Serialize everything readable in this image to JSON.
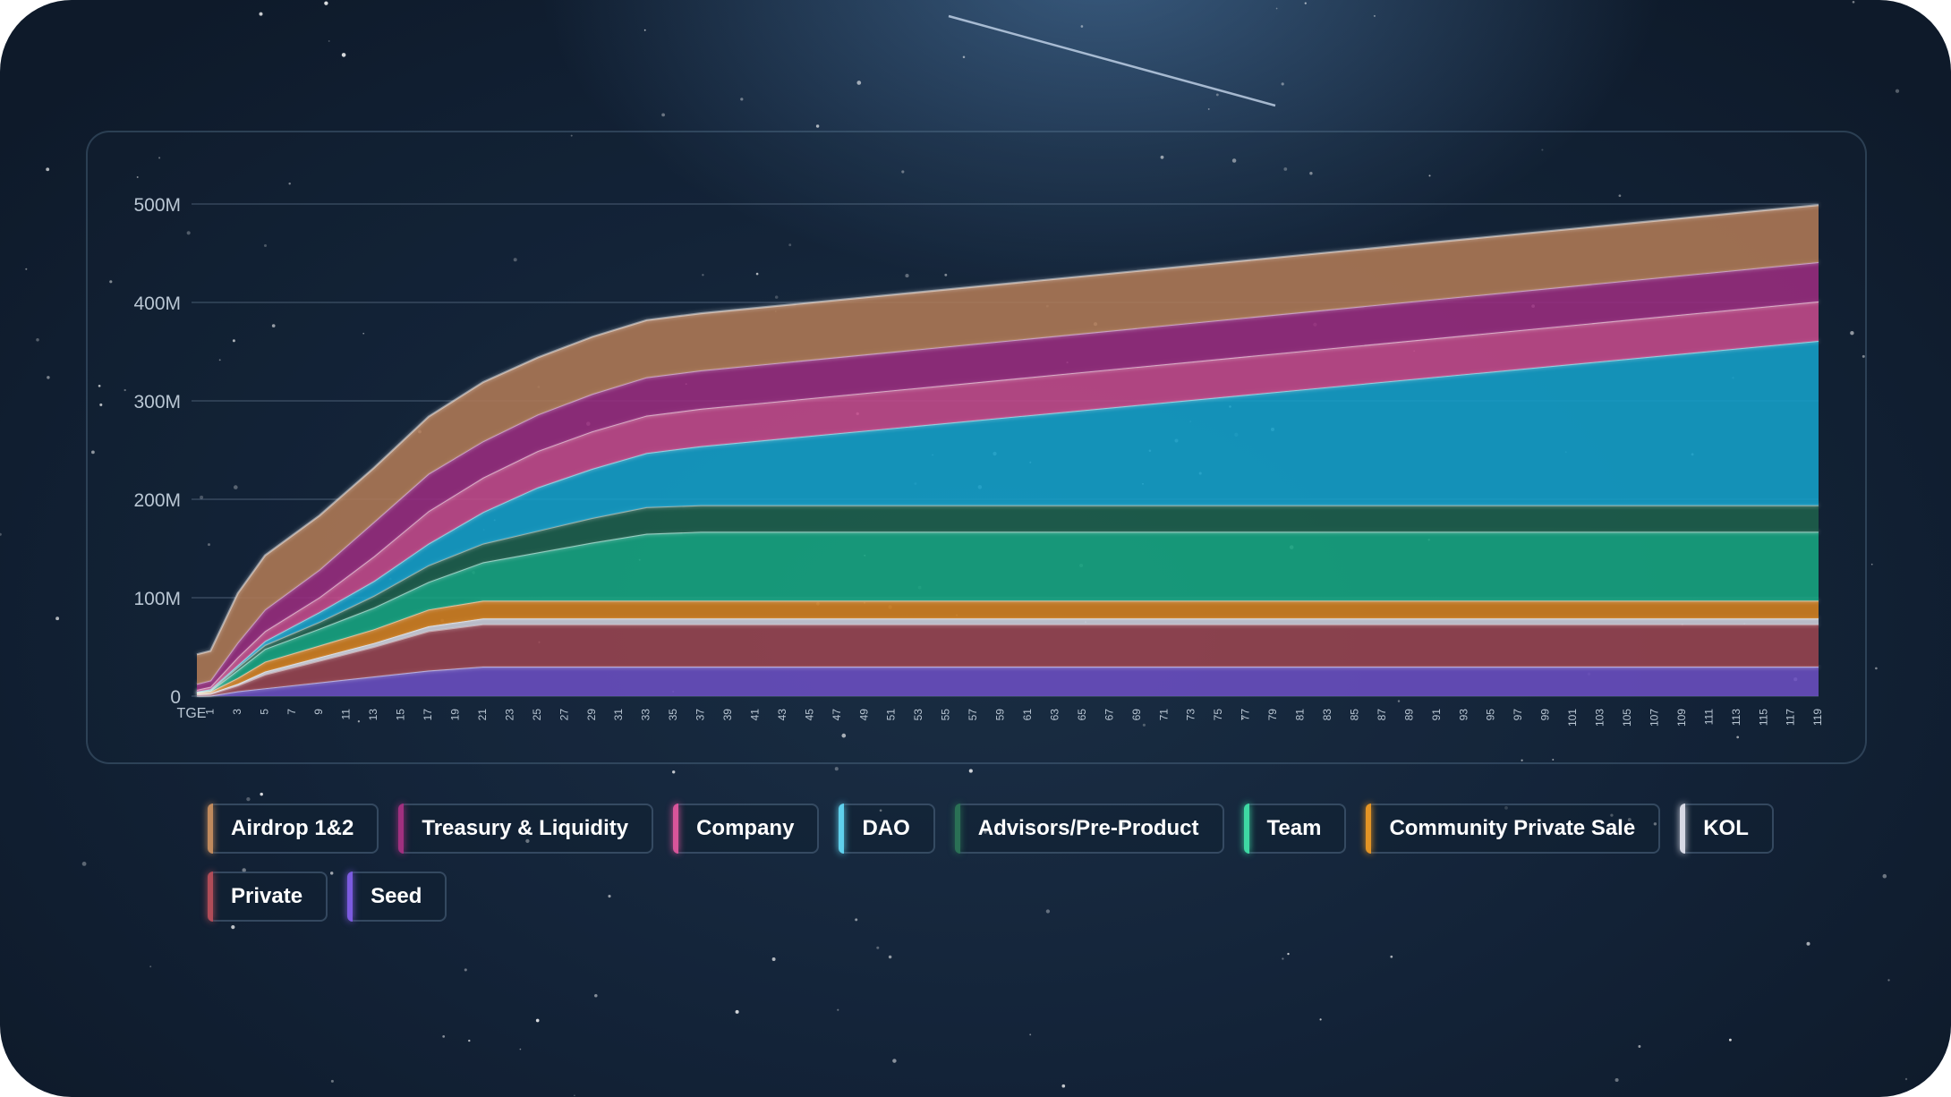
{
  "chart_data": {
    "type": "area",
    "stacked": true,
    "title": "",
    "xlabel": "",
    "ylabel": "",
    "ylim": [
      0,
      500000000
    ],
    "y_ticks": [
      {
        "value": 0,
        "label": "0"
      },
      {
        "value": 100000000,
        "label": "100M"
      },
      {
        "value": 200000000,
        "label": "200M"
      },
      {
        "value": 300000000,
        "label": "300M"
      },
      {
        "value": 400000000,
        "label": "400M"
      },
      {
        "value": 500000000,
        "label": "500M"
      }
    ],
    "x_tick_labels": [
      "TGE",
      "1",
      "3",
      "5",
      "7",
      "9",
      "11",
      "13",
      "15",
      "17",
      "19",
      "21",
      "23",
      "25",
      "27",
      "29",
      "31",
      "33",
      "35",
      "37",
      "39",
      "41",
      "43",
      "45",
      "47",
      "49",
      "51",
      "53",
      "55",
      "57",
      "59",
      "61",
      "63",
      "65",
      "67",
      "69",
      "71",
      "73",
      "75",
      "77",
      "79",
      "81",
      "83",
      "85",
      "87",
      "89",
      "91",
      "93",
      "95",
      "97",
      "99",
      "101",
      "103",
      "105",
      "107",
      "109",
      "111",
      "113",
      "115",
      "117",
      "119"
    ],
    "x": [
      0,
      1,
      3,
      5,
      9,
      13,
      17,
      21,
      25,
      29,
      33,
      37,
      119
    ],
    "grid": true,
    "legend_position": "bottom",
    "series": [
      {
        "name": "Seed",
        "color": "#6b4fc2",
        "values": [
          0.2,
          0.5,
          5,
          8,
          14,
          20,
          26,
          30,
          30,
          30,
          30,
          30,
          30
        ]
      },
      {
        "name": "Private",
        "color": "#9a4450",
        "values": [
          1.5,
          2,
          6,
          14,
          22,
          30,
          40,
          43,
          43,
          43,
          43,
          43,
          43
        ]
      },
      {
        "name": "KOL",
        "color": "#c9cbd6",
        "values": [
          0.5,
          0.5,
          1.5,
          3,
          3.5,
          4,
          5,
          6,
          6,
          6,
          6,
          6,
          6
        ]
      },
      {
        "name": "Community Private Sale",
        "color": "#d5811f",
        "values": [
          1,
          1.5,
          6,
          10,
          12,
          14,
          17,
          18,
          18,
          18,
          18,
          18,
          18
        ]
      },
      {
        "name": "Team",
        "color": "#17a681",
        "values": [
          0.5,
          1,
          8,
          13,
          17,
          22,
          28,
          39,
          49,
          59,
          68,
          70,
          70
        ]
      },
      {
        "name": "Advisors/Pre-Product",
        "color": "#1e604b",
        "values": [
          0.3,
          0.5,
          3,
          4,
          7,
          12,
          17,
          19,
          22,
          25,
          27,
          27,
          27
        ]
      },
      {
        "name": "DAO",
        "color": "#15a0c9",
        "values": [
          0.5,
          1,
          2,
          4,
          10,
          15,
          22,
          32,
          44,
          50,
          55,
          60,
          167
        ]
      },
      {
        "name": "Company",
        "color": "#c54a8b",
        "values": [
          2,
          2.5,
          8,
          10,
          15,
          25,
          33,
          35,
          37,
          38,
          38,
          38,
          40
        ]
      },
      {
        "name": "Treasury & Liquidity",
        "color": "#9a2c7e",
        "values": [
          6,
          6.5,
          15,
          22,
          28,
          35,
          38,
          37,
          37,
          38,
          39,
          39,
          40
        ]
      },
      {
        "name": "Airdrop 1&2",
        "color": "#b07a55",
        "values": [
          30,
          30,
          50,
          55,
          55,
          55,
          58,
          60,
          58,
          58,
          58,
          58,
          58
        ]
      }
    ],
    "values_unit": "M tokens"
  },
  "legend": {
    "items": [
      {
        "label": "Airdrop 1&2",
        "color": "#c08a5d"
      },
      {
        "label": "Treasury & Liquidity",
        "color": "#a0307f"
      },
      {
        "label": "Company",
        "color": "#d8559a"
      },
      {
        "label": "DAO",
        "color": "#5fd0ec"
      },
      {
        "label": "Advisors/Pre-Product",
        "color": "#2a7055"
      },
      {
        "label": "Team",
        "color": "#3ed8a3"
      },
      {
        "label": "Community Private Sale",
        "color": "#e39425"
      },
      {
        "label": "KOL",
        "color": "#d6d8e4"
      },
      {
        "label": "Private",
        "color": "#b04c58"
      },
      {
        "label": "Seed",
        "color": "#7c5be0"
      }
    ]
  }
}
